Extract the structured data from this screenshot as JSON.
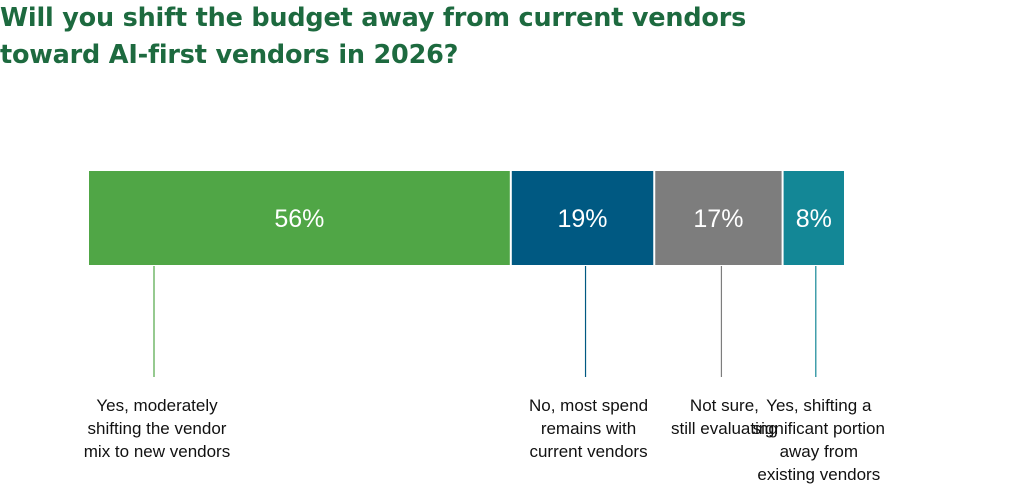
{
  "chart_data": {
    "type": "bar",
    "orientation": "horizontal-stacked",
    "title": "Will you shift the budget away from current vendors\ntoward AI-first vendors in 2026?",
    "unit": "%",
    "xlim": [
      0,
      100
    ],
    "grid": false,
    "legend": "none",
    "series": [
      {
        "label_lines": [
          "Yes, moderately",
          "shifting the vendor",
          "mix to new vendors"
        ],
        "value": 56,
        "value_label": "56%",
        "color": "#50a646"
      },
      {
        "label_lines": [
          "No, most spend",
          "remains with",
          "current vendors"
        ],
        "value": 19,
        "value_label": "19%",
        "color": "#005982"
      },
      {
        "label_lines": [
          "Not sure,",
          "still evaluating"
        ],
        "value": 17,
        "value_label": "17%",
        "color": "#7d7d7d"
      },
      {
        "label_lines": [
          "Yes, shifting a",
          "significant portion",
          "away from",
          "existing vendors"
        ],
        "value": 8,
        "value_label": "8%",
        "color": "#138796"
      }
    ]
  }
}
